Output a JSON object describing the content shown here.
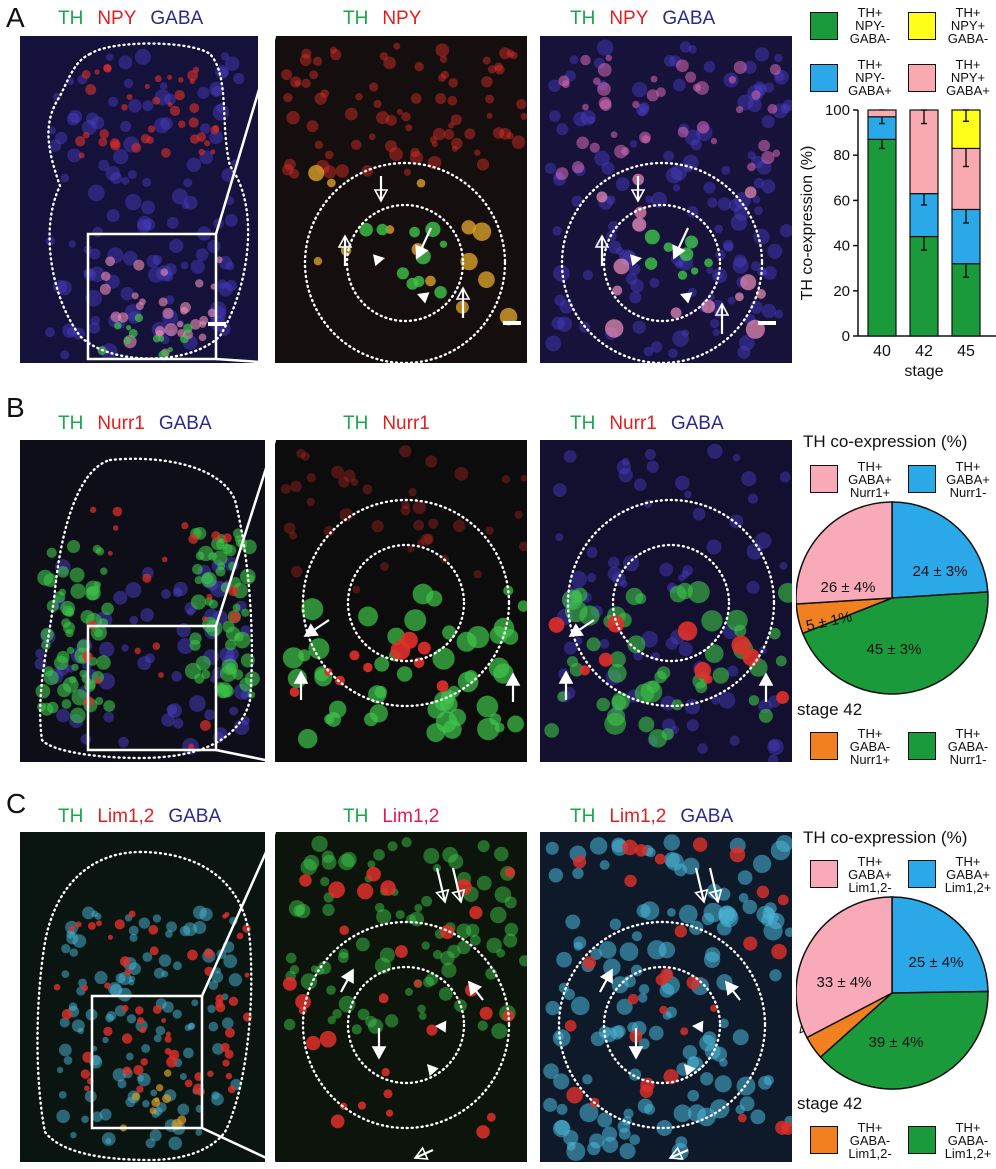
{
  "panels": {
    "A": {
      "letter": "A",
      "headers": [
        [
          {
            "t": "TH",
            "c": "th"
          },
          {
            "t": "NPY",
            "c": "red"
          },
          {
            "t": "GABA",
            "c": "gaba"
          }
        ],
        [
          {
            "t": "TH",
            "c": "th"
          },
          {
            "t": "NPY",
            "c": "red"
          }
        ],
        [
          {
            "t": "TH",
            "c": "th"
          },
          {
            "t": "NPY",
            "c": "red"
          },
          {
            "t": "GABA",
            "c": "gaba"
          }
        ]
      ],
      "legend": [
        {
          "label": "TH+\nNPY-\nGABA-",
          "color": "#1a9a3a"
        },
        {
          "label": "TH+\nNPY+\nGABA-",
          "color": "#ffff1a"
        },
        {
          "label": "TH+\nNPY-\nGABA+",
          "color": "#2aa8e8"
        },
        {
          "label": "TH+\nNPY+\nGABA+",
          "color": "#f8aab0"
        }
      ]
    },
    "B": {
      "letter": "B",
      "headers": [
        [
          {
            "t": "TH",
            "c": "th"
          },
          {
            "t": "Nurr1",
            "c": "red"
          },
          {
            "t": "GABA",
            "c": "gaba"
          }
        ],
        [
          {
            "t": "TH",
            "c": "th"
          },
          {
            "t": "Nurr1",
            "c": "red"
          }
        ],
        [
          {
            "t": "TH",
            "c": "th"
          },
          {
            "t": "Nurr1",
            "c": "red"
          },
          {
            "t": "GABA",
            "c": "gaba"
          }
        ]
      ],
      "pie_title": "TH co-expression (%)",
      "stage": "stage 42",
      "legend": [
        {
          "label": "TH+\nGABA+\nNurr1+",
          "color": "#f8aab8"
        },
        {
          "label": "TH+\nGABA+\nNurr1-",
          "color": "#2aa8e8"
        },
        {
          "label": "TH+\nGABA-\nNurr1+",
          "color": "#f08020"
        },
        {
          "label": "TH+\nGABA-\nNurr1-",
          "color": "#1a9a3a"
        }
      ]
    },
    "C": {
      "letter": "C",
      "headers": [
        [
          {
            "t": "TH",
            "c": "th"
          },
          {
            "t": "Lim1,2",
            "c": "red"
          },
          {
            "t": "GABA",
            "c": "gaba"
          }
        ],
        [
          {
            "t": "TH",
            "c": "th"
          },
          {
            "t": "Lim1,2",
            "c": "pink"
          }
        ],
        [
          {
            "t": "TH",
            "c": "th"
          },
          {
            "t": "Lim1,2",
            "c": "red"
          },
          {
            "t": "GABA",
            "c": "gaba"
          }
        ]
      ],
      "pie_title": "TH co-expression (%)",
      "stage": "stage 42",
      "legend": [
        {
          "label": "TH+\nGABA+\nLim1,2-",
          "color": "#f8aab8"
        },
        {
          "label": "TH+\nGABA+\nLim1,2+",
          "color": "#2aa8e8"
        },
        {
          "label": "TH+\nGABA-\nLim1,2-",
          "color": "#f08020"
        },
        {
          "label": "TH+\nGABA-\nLim1,2+",
          "color": "#1a9a3a"
        }
      ]
    }
  },
  "chart_data": [
    {
      "type": "bar",
      "stacked": true,
      "categories": [
        "40",
        "42",
        "45"
      ],
      "xlabel": "stage",
      "ylabel": "TH co-expression (%)",
      "ylim": [
        0,
        100
      ],
      "yticks": [
        0,
        20,
        40,
        60,
        80,
        100
      ],
      "series": [
        {
          "name": "TH+ NPY- GABA-",
          "color": "#1a9a3a",
          "values": [
            87,
            44,
            32
          ],
          "err": [
            4,
            6,
            6
          ]
        },
        {
          "name": "TH+ NPY- GABA+",
          "color": "#2aa8e8",
          "values": [
            10,
            19,
            24
          ],
          "err": [
            3,
            5,
            6
          ]
        },
        {
          "name": "TH+ NPY+ GABA+",
          "color": "#f8aab0",
          "values": [
            3,
            37,
            27
          ],
          "err": [
            0,
            6,
            8
          ]
        },
        {
          "name": "TH+ NPY+ GABA-",
          "color": "#ffff1a",
          "values": [
            0,
            0,
            17
          ],
          "err": [
            0,
            0,
            5
          ]
        }
      ]
    },
    {
      "type": "pie",
      "title": "TH co-expression (%)",
      "slices": [
        {
          "name": "TH+ GABA+ Nurr1-",
          "value": 24,
          "label": "24 ± 3%",
          "color": "#2aa8e8"
        },
        {
          "name": "TH+ GABA- Nurr1-",
          "value": 45,
          "label": "45 ± 3%",
          "color": "#1a9a3a"
        },
        {
          "name": "TH+ GABA- Nurr1+",
          "value": 5,
          "label": "5 ± 1%",
          "color": "#f08020"
        },
        {
          "name": "TH+ GABA+ Nurr1+",
          "value": 26,
          "label": "26 ± 4%",
          "color": "#f8aab8"
        }
      ]
    },
    {
      "type": "pie",
      "title": "TH co-expression (%)",
      "slices": [
        {
          "name": "TH+ GABA+ Lim1,2+",
          "value": 25,
          "label": "25 ± 4%",
          "color": "#2aa8e8"
        },
        {
          "name": "TH+ GABA- Lim1,2+",
          "value": 39,
          "label": "39 ± 4%",
          "color": "#1a9a3a"
        },
        {
          "name": "TH+ GABA- Lim1,2-",
          "value": 4,
          "label": "4 ± 1%",
          "color": "#f08020"
        },
        {
          "name": "TH+ GABA+ Lim1,2-",
          "value": 33,
          "label": "33 ± 4%",
          "color": "#f8aab8"
        }
      ]
    }
  ]
}
